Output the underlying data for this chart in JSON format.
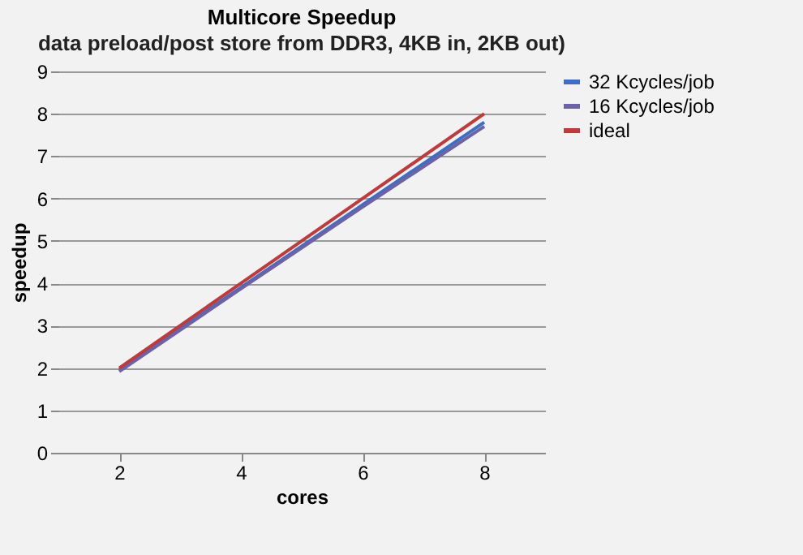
{
  "chart_data": {
    "type": "line",
    "title": "Multicore Speedup",
    "subtitle": "data preload/post store from DDR3, 4KB in, 2KB out)",
    "xlabel": "cores",
    "ylabel": "speedup",
    "categories": [
      "2",
      "4",
      "6",
      "8"
    ],
    "series": [
      {
        "name": "32 Kcycles/job",
        "color": "#3a6fc4",
        "values": [
          1.95,
          3.9,
          5.85,
          7.8
        ]
      },
      {
        "name": "16 Kcycles/job",
        "color": "#6b62a8",
        "values": [
          1.92,
          3.87,
          5.8,
          7.7
        ]
      },
      {
        "name": "ideal",
        "color": "#c0393b",
        "values": [
          2,
          4,
          6,
          8
        ]
      }
    ],
    "ylim": [
      0,
      9
    ],
    "yticks": [
      0,
      1,
      2,
      3,
      4,
      5,
      6,
      7,
      8,
      9
    ],
    "grid": "y",
    "legend": "right",
    "marker": "none",
    "line_style": "solid"
  }
}
